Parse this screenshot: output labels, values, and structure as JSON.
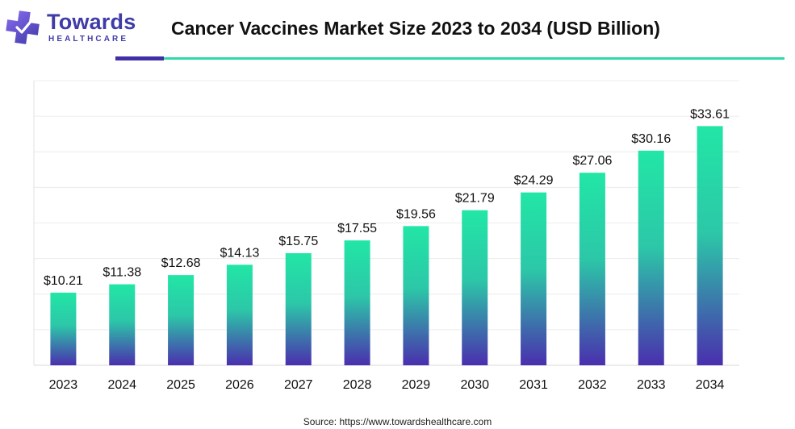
{
  "brand": {
    "name": "Towards",
    "tagline": "HEALTHCARE",
    "colors": {
      "primary": "#3f3ba8",
      "accent": "#2ed9a8"
    }
  },
  "header": {
    "title": "Cancer Vaccines Market Size 2023 to 2034 (USD Billion)"
  },
  "footer": {
    "source": "Source: https://www.towardshealthcare.com"
  },
  "chart_data": {
    "type": "bar",
    "title": "Cancer Vaccines Market Size 2023 to 2034 (USD Billion)",
    "xlabel": "",
    "ylabel": "",
    "categories": [
      "2023",
      "2024",
      "2025",
      "2026",
      "2027",
      "2028",
      "2029",
      "2030",
      "2031",
      "2032",
      "2033",
      "2034"
    ],
    "values": [
      10.21,
      11.38,
      12.68,
      14.13,
      15.75,
      17.55,
      19.56,
      21.79,
      24.29,
      27.06,
      30.16,
      33.61
    ],
    "value_labels": [
      "$10.21",
      "$11.38",
      "$12.68",
      "$14.13",
      "$15.75",
      "$17.55",
      "$19.56",
      "$21.79",
      "$24.29",
      "$27.06",
      "$30.16",
      "$33.61"
    ],
    "ylim": [
      0,
      40
    ],
    "grid": true,
    "legend": "none",
    "bar_gradient": {
      "top": "#22e6a6",
      "bottom": "#4a2fae"
    }
  }
}
